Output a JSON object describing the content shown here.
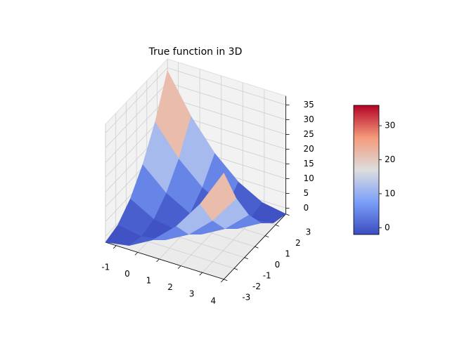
{
  "chart_data": {
    "type": "surface3d",
    "title": "True function in 3D",
    "x": [
      -1.5,
      -0.4,
      0.7,
      1.8,
      2.9,
      4
    ],
    "y": [
      -3,
      -1.8,
      -0.6,
      0.6,
      1.8,
      3
    ],
    "z": [
      [
        -2,
        -0.6,
        3.8,
        11,
        21,
        34
      ],
      [
        -0.6,
        -2,
        -0.6,
        3.8,
        11,
        21
      ],
      [
        3.8,
        -0.6,
        -2,
        -0.6,
        3.8,
        11
      ],
      [
        11,
        3.8,
        -0.6,
        -2,
        -0.6,
        3.8
      ],
      [
        21,
        11,
        3.8,
        -0.6,
        -2,
        -0.6
      ],
      [
        34,
        21,
        11,
        3.8,
        -0.6,
        -2
      ]
    ],
    "xlim": [
      -1.5,
      4
    ],
    "ylim": [
      -3,
      3
    ],
    "zlim": [
      -2,
      38
    ],
    "xticks": [
      -1,
      0,
      1,
      2,
      3,
      4
    ],
    "yticks": [
      -3,
      -2,
      -1,
      0,
      1,
      2,
      3
    ],
    "zticks": [
      0,
      5,
      10,
      15,
      20,
      25,
      30,
      35
    ],
    "colormap": "coolwarm",
    "clim": [
      -2,
      36
    ],
    "colorbar_ticks": [
      0,
      10,
      20,
      30
    ],
    "grid": true
  }
}
